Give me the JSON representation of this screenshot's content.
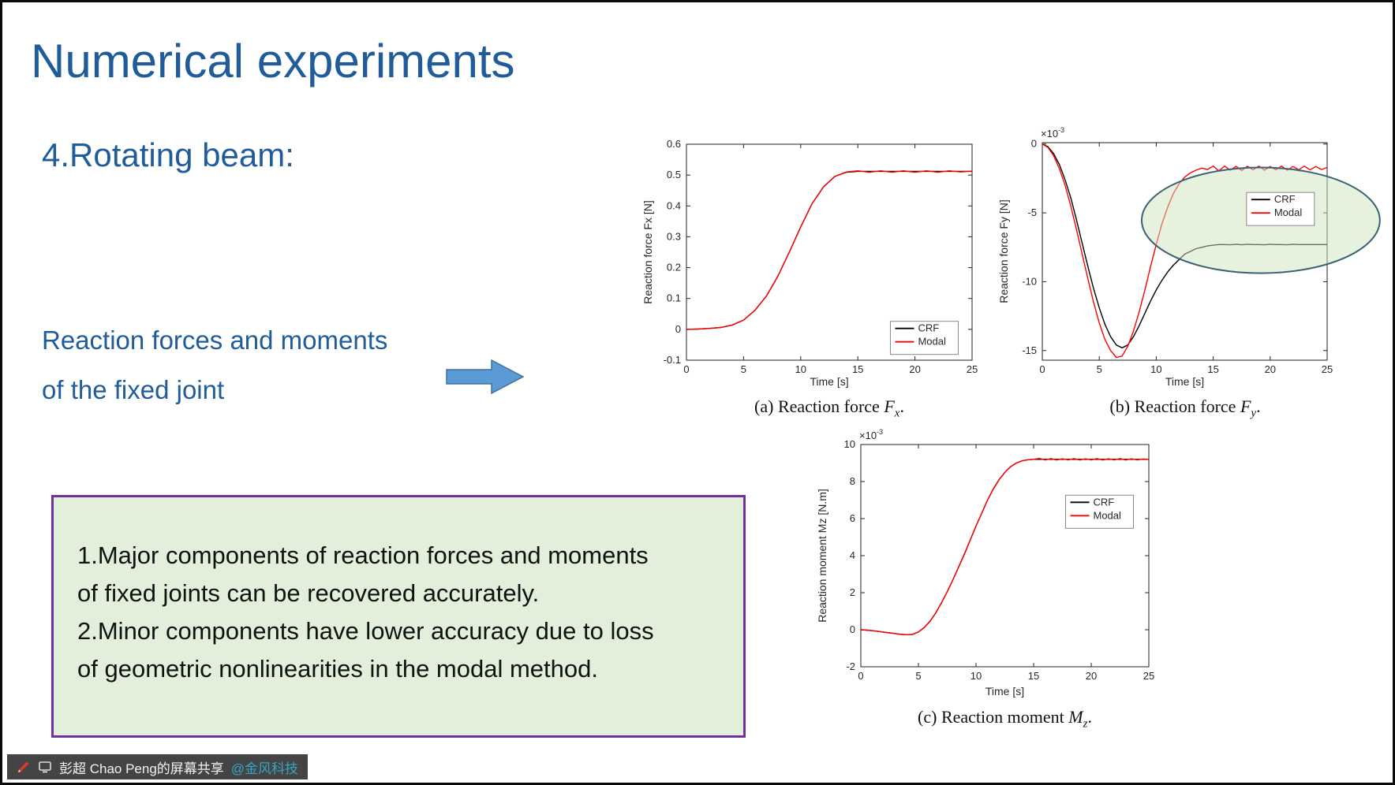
{
  "slide": {
    "title": "Numerical experiments",
    "subtitle": "4.Rotating beam:",
    "lead_line1": "Reaction forces and moments",
    "lead_line2": "of the fixed joint",
    "accent_color": "#1F5C99",
    "arrow_fill": "#5B9BD5",
    "arrow_stroke": "#41719C"
  },
  "note_box": {
    "bg": "#E2EFDA",
    "border": "#7030A0",
    "lines": [
      "1.Major components of reaction forces and moments",
      "of fixed joints can be recovered accurately.",
      "2.Minor components have lower accuracy due to loss",
      "of geometric nonlinearities in the modal method."
    ]
  },
  "captions": [
    {
      "prefix": "(a) Reaction force ",
      "symbol": "F",
      "sub": "x",
      "suffix": "."
    },
    {
      "prefix": "(b) Reaction force ",
      "symbol": "F",
      "sub": "y",
      "suffix": "."
    },
    {
      "prefix": "(c) Reaction moment ",
      "symbol": "M",
      "sub": "z",
      "suffix": "."
    }
  ],
  "share_bar": {
    "text": "彭超 Chao Peng的屏幕共享",
    "watermark": "@金风科技",
    "watermark_color": "#35A6C4"
  },
  "chart_data": [
    {
      "type": "line",
      "xlabel": "Time [s]",
      "ylabel": "Reaction force Fx [N]",
      "xlim": [
        0,
        25
      ],
      "ylim": [
        -0.1,
        0.6
      ],
      "xticks": [
        0,
        5,
        10,
        15,
        20,
        25
      ],
      "yticks": [
        -0.1,
        0,
        0.1,
        0.2,
        0.3,
        0.4,
        0.5,
        0.6
      ],
      "exponent": null,
      "grid": false,
      "legend": {
        "fx": 0.714,
        "fy": 0.82,
        "position": "lower-right"
      },
      "x": [
        0,
        1,
        2,
        3,
        4,
        5,
        6,
        7,
        8,
        9,
        10,
        11,
        12,
        13,
        14,
        15,
        16,
        17,
        18,
        19,
        20,
        21,
        22,
        23,
        24,
        25
      ],
      "series": [
        {
          "name": "CRF",
          "color": "#000000",
          "values": [
            0,
            0.001,
            0.003,
            0.006,
            0.014,
            0.03,
            0.062,
            0.108,
            0.172,
            0.25,
            0.332,
            0.408,
            0.462,
            0.496,
            0.509,
            0.512,
            0.512,
            0.512,
            0.512,
            0.512,
            0.512,
            0.512,
            0.512,
            0.512,
            0.512,
            0.512
          ]
        },
        {
          "name": "Modal",
          "color": "#FF0000",
          "values": [
            0,
            0.001,
            0.003,
            0.006,
            0.014,
            0.03,
            0.062,
            0.108,
            0.172,
            0.25,
            0.332,
            0.408,
            0.462,
            0.496,
            0.51,
            0.514,
            0.509,
            0.514,
            0.509,
            0.514,
            0.509,
            0.514,
            0.509,
            0.514,
            0.51,
            0.513
          ]
        }
      ],
      "annotations": []
    },
    {
      "type": "line",
      "xlabel": "Time [s]",
      "ylabel": "Reaction force Fy [N]",
      "xlim": [
        0,
        25
      ],
      "ylim": [
        -15.7,
        0.1
      ],
      "xticks": [
        0,
        5,
        10,
        15,
        20,
        25
      ],
      "yticks": [
        0,
        -5,
        -10,
        -15
      ],
      "exponent": "-3",
      "grid": false,
      "legend": {
        "fx": 0.717,
        "fy": 0.229,
        "position": "upper-right"
      },
      "x": [
        0,
        0.5,
        1,
        1.5,
        2,
        2.5,
        3,
        3.5,
        4,
        4.5,
        5,
        5.5,
        6,
        6.5,
        7,
        7.5,
        8,
        8.5,
        9,
        9.5,
        10,
        10.5,
        11,
        11.5,
        12,
        12.5,
        13,
        13.5,
        14,
        14.5,
        15,
        15.5,
        16,
        16.5,
        17,
        17.5,
        18,
        18.5,
        19,
        19.5,
        20,
        20.5,
        21,
        21.5,
        22,
        22.5,
        23,
        23.5,
        24,
        24.5,
        25
      ],
      "series": [
        {
          "name": "CRF",
          "color": "#000000",
          "values": [
            0,
            -0.2,
            -0.7,
            -1.5,
            -2.6,
            -3.9,
            -5.5,
            -7.2,
            -8.9,
            -10.5,
            -11.9,
            -13.1,
            -14.0,
            -14.6,
            -14.8,
            -14.6,
            -14.0,
            -13.2,
            -12.3,
            -11.4,
            -10.6,
            -9.9,
            -9.3,
            -8.8,
            -8.4,
            -8.0,
            -7.8,
            -7.6,
            -7.5,
            -7.4,
            -7.35,
            -7.3,
            -7.3,
            -7.32,
            -7.28,
            -7.32,
            -7.28,
            -7.3,
            -7.3,
            -7.32,
            -7.28,
            -7.3,
            -7.3,
            -7.32,
            -7.28,
            -7.3,
            -7.3,
            -7.3,
            -7.3,
            -7.3,
            -7.3
          ]
        },
        {
          "name": "Modal",
          "color": "#FF0000",
          "values": [
            0,
            -0.25,
            -0.85,
            -1.8,
            -3.0,
            -4.5,
            -6.2,
            -8.0,
            -9.8,
            -11.5,
            -13.0,
            -14.2,
            -15.0,
            -15.5,
            -15.4,
            -14.7,
            -13.6,
            -12.2,
            -10.6,
            -8.9,
            -7.3,
            -5.8,
            -4.6,
            -3.6,
            -2.9,
            -2.4,
            -2.1,
            -1.9,
            -1.75,
            -1.85,
            -1.6,
            -1.95,
            -1.6,
            -1.9,
            -1.62,
            -1.92,
            -1.62,
            -1.88,
            -1.6,
            -1.9,
            -1.63,
            -1.88,
            -1.6,
            -1.9,
            -1.63,
            -1.87,
            -1.6,
            -1.88,
            -1.63,
            -1.85,
            -1.7
          ]
        }
      ],
      "annotations": [
        {
          "type": "ellipse",
          "fx": 0.767,
          "fy": 0.357,
          "frx": 0.418,
          "fry": 0.243,
          "fill": "rgba(205,228,190,0.5)",
          "stroke": "#3A6272"
        }
      ]
    },
    {
      "type": "line",
      "xlabel": "Time [s]",
      "ylabel": "Reaction moment Mz [N.m]",
      "xlim": [
        0,
        25
      ],
      "ylim": [
        -2,
        10
      ],
      "xticks": [
        0,
        5,
        10,
        15,
        20,
        25
      ],
      "yticks": [
        -2,
        0,
        2,
        4,
        6,
        8,
        10
      ],
      "exponent": "-3",
      "grid": false,
      "legend": {
        "fx": 0.711,
        "fy": 0.228,
        "position": "upper-right"
      },
      "x": [
        0,
        0.5,
        1,
        1.5,
        2,
        2.5,
        3,
        3.5,
        4,
        4.5,
        5,
        5.5,
        6,
        6.5,
        7,
        7.5,
        8,
        8.5,
        9,
        9.5,
        10,
        10.5,
        11,
        11.5,
        12,
        12.5,
        13,
        13.5,
        14,
        14.5,
        15,
        15.5,
        16,
        16.5,
        17,
        17.5,
        18,
        18.5,
        19,
        19.5,
        20,
        20.5,
        21,
        21.5,
        22,
        22.5,
        23,
        23.5,
        24,
        24.5,
        25
      ],
      "series": [
        {
          "name": "CRF",
          "color": "#000000",
          "values": [
            0,
            -0.02,
            -0.05,
            -0.09,
            -0.13,
            -0.17,
            -0.21,
            -0.25,
            -0.27,
            -0.25,
            -0.12,
            0.12,
            0.45,
            0.9,
            1.45,
            2.05,
            2.7,
            3.4,
            4.1,
            4.85,
            5.6,
            6.3,
            7.0,
            7.6,
            8.1,
            8.5,
            8.8,
            9.0,
            9.12,
            9.18,
            9.2,
            9.2,
            9.2,
            9.2,
            9.2,
            9.2,
            9.2,
            9.2,
            9.2,
            9.2,
            9.2,
            9.2,
            9.2,
            9.2,
            9.2,
            9.2,
            9.2,
            9.2,
            9.2,
            9.2,
            9.2
          ]
        },
        {
          "name": "Modal",
          "color": "#FF0000",
          "values": [
            0,
            -0.02,
            -0.05,
            -0.09,
            -0.13,
            -0.17,
            -0.21,
            -0.25,
            -0.27,
            -0.25,
            -0.12,
            0.12,
            0.45,
            0.9,
            1.45,
            2.05,
            2.7,
            3.4,
            4.1,
            4.85,
            5.6,
            6.3,
            7.0,
            7.6,
            8.1,
            8.5,
            8.8,
            9.0,
            9.12,
            9.18,
            9.2,
            9.25,
            9.16,
            9.24,
            9.16,
            9.23,
            9.17,
            9.24,
            9.16,
            9.23,
            9.17,
            9.24,
            9.16,
            9.23,
            9.17,
            9.24,
            9.16,
            9.23,
            9.17,
            9.22,
            9.2
          ]
        }
      ],
      "annotations": []
    }
  ]
}
